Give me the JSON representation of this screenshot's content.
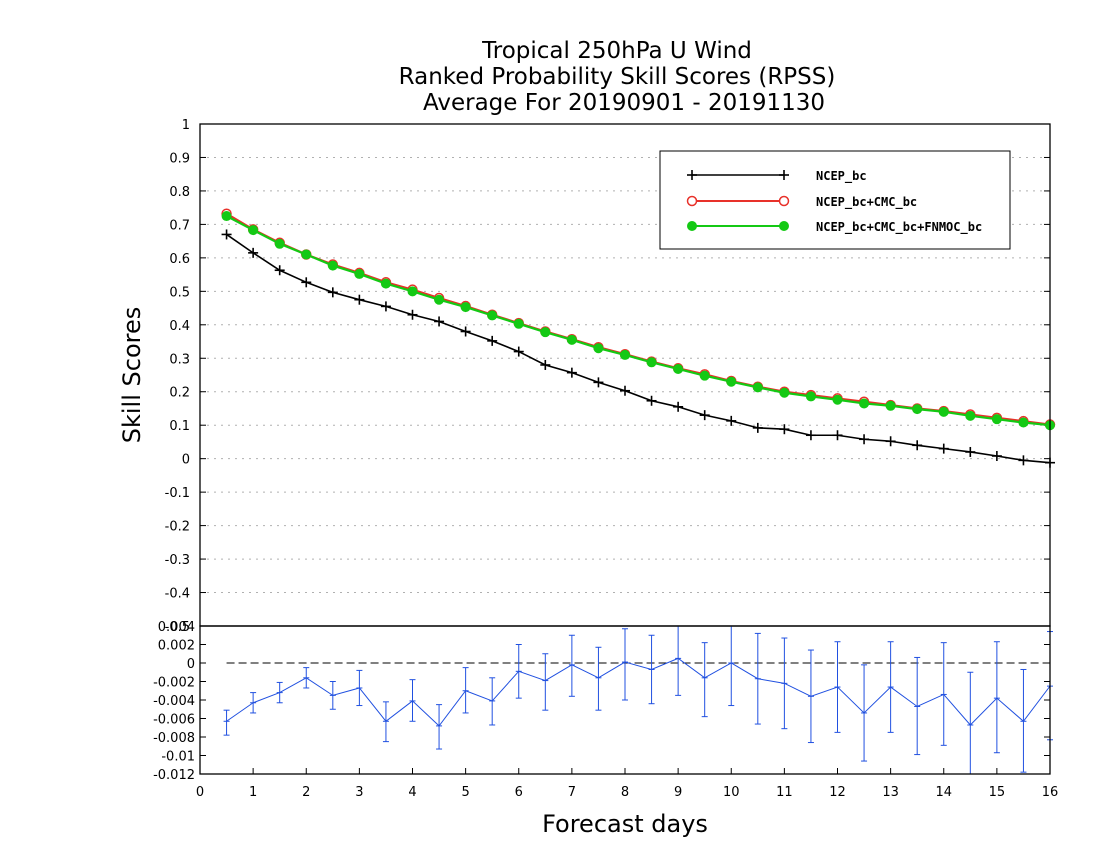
{
  "title": {
    "line1": "Tropical 250hPa U Wind",
    "line2": "Ranked Probability Skill Scores (RPSS)",
    "line3": "Average For 20190901 - 20191130"
  },
  "xlabel": "Forecast days",
  "ylabel": "Skill Scores",
  "colors": {
    "ncep": "#000000",
    "ncep_cmc": "#e8312a",
    "ncep_cmc_fnmoc": "#14c914",
    "diff": "#2050e0"
  },
  "chart_data": [
    {
      "type": "line",
      "xlim": [
        0,
        16
      ],
      "ylim": [
        -0.5,
        1
      ],
      "x_ticks": [
        "0",
        "1",
        "2",
        "3",
        "4",
        "5",
        "6",
        "7",
        "8",
        "9",
        "10",
        "11",
        "12",
        "13",
        "14",
        "15",
        "16"
      ],
      "y_ticks": [
        "1",
        "0.9",
        "0.8",
        "0.7",
        "0.6",
        "0.5",
        "0.4",
        "0.3",
        "0.2",
        "0.1",
        "0",
        "-0.1",
        "-0.2",
        "-0.3",
        "-0.4",
        "-0.5"
      ],
      "grid": true,
      "legend_position": "top-right",
      "x": [
        0.5,
        1,
        1.5,
        2,
        2.5,
        3,
        3.5,
        4,
        4.5,
        5,
        5.5,
        6,
        6.5,
        7,
        7.5,
        8,
        8.5,
        9,
        9.5,
        10,
        10.5,
        11,
        11.5,
        12,
        12.5,
        13,
        13.5,
        14,
        14.5,
        15,
        15.5,
        16
      ],
      "series": [
        {
          "name": "NCEP_bc",
          "marker": "plus",
          "values": [
            0.67,
            0.615,
            0.563,
            0.527,
            0.497,
            0.475,
            0.455,
            0.43,
            0.41,
            0.38,
            0.352,
            0.32,
            0.28,
            0.257,
            0.228,
            0.203,
            0.173,
            0.155,
            0.13,
            0.113,
            0.092,
            0.088,
            0.07,
            0.07,
            0.058,
            0.052,
            0.04,
            0.03,
            0.02,
            0.008,
            -0.005,
            -0.012
          ]
        },
        {
          "name": "NCEP_bc+CMC_bc",
          "marker": "open-circle",
          "values": [
            0.732,
            0.685,
            0.645,
            0.61,
            0.58,
            0.555,
            0.527,
            0.505,
            0.48,
            0.456,
            0.43,
            0.405,
            0.38,
            0.357,
            0.333,
            0.312,
            0.29,
            0.27,
            0.252,
            0.232,
            0.215,
            0.2,
            0.19,
            0.18,
            0.17,
            0.16,
            0.15,
            0.142,
            0.132,
            0.122,
            0.112,
            0.102
          ]
        },
        {
          "name": "NCEP_bc+CMC_bc+FNMOC_bc",
          "marker": "filled-circle",
          "values": [
            0.725,
            0.683,
            0.642,
            0.61,
            0.577,
            0.552,
            0.523,
            0.5,
            0.475,
            0.453,
            0.428,
            0.403,
            0.378,
            0.355,
            0.33,
            0.31,
            0.288,
            0.268,
            0.248,
            0.23,
            0.213,
            0.197,
            0.186,
            0.176,
            0.165,
            0.158,
            0.148,
            0.14,
            0.128,
            0.118,
            0.108,
            0.1
          ]
        }
      ]
    },
    {
      "type": "line",
      "xlim": [
        0,
        16
      ],
      "ylim": [
        -0.012,
        0.004
      ],
      "x_ticks": [
        "0",
        "1",
        "2",
        "3",
        "4",
        "5",
        "6",
        "7",
        "8",
        "9",
        "10",
        "11",
        "12",
        "13",
        "14",
        "15",
        "16"
      ],
      "y_ticks": [
        "0.004",
        "0.002",
        "0",
        "-0.002",
        "-0.004",
        "-0.006",
        "-0.008",
        "-0.01",
        "-0.012"
      ],
      "reference_line": 0,
      "error_bars": true,
      "x": [
        0.5,
        1,
        1.5,
        2,
        2.5,
        3,
        3.5,
        4,
        4.5,
        5,
        5.5,
        6,
        6.5,
        7,
        7.5,
        8,
        8.5,
        9,
        9.5,
        10,
        10.5,
        11,
        11.5,
        12,
        12.5,
        13,
        13.5,
        14,
        14.5,
        15,
        15.5,
        16
      ],
      "values": [
        -0.0063,
        -0.0043,
        -0.0032,
        -0.0016,
        -0.0035,
        -0.0027,
        -0.0063,
        -0.0041,
        -0.0068,
        -0.003,
        -0.0041,
        -0.0009,
        -0.0019,
        -0.0002,
        -0.0016,
        0.0001,
        -0.0007,
        0.0005,
        -0.0016,
        0.0,
        -0.0017,
        -0.0022,
        -0.0036,
        -0.0026,
        -0.0054,
        -0.0026,
        -0.0047,
        -0.0034,
        -0.0067,
        -0.0038,
        -0.0063,
        -0.0025
      ],
      "lower": [
        -0.0078,
        -0.0054,
        -0.0043,
        -0.0027,
        -0.005,
        -0.0046,
        -0.0085,
        -0.0063,
        -0.0093,
        -0.0054,
        -0.0067,
        -0.0038,
        -0.0051,
        -0.0036,
        -0.0051,
        -0.004,
        -0.0044,
        -0.0035,
        -0.0058,
        -0.0046,
        -0.0066,
        -0.0071,
        -0.0086,
        -0.0075,
        -0.0106,
        -0.0075,
        -0.0099,
        -0.0089,
        -0.0124,
        -0.0097,
        -0.0118,
        -0.0083
      ],
      "upper": [
        -0.0051,
        -0.0032,
        -0.0021,
        -0.0005,
        -0.002,
        -0.0008,
        -0.0042,
        -0.0018,
        -0.0045,
        -0.0005,
        -0.0016,
        0.002,
        0.001,
        0.003,
        0.0017,
        0.0037,
        0.003,
        0.0044,
        0.0022,
        0.0042,
        0.0032,
        0.0027,
        0.0014,
        0.0023,
        -0.0002,
        0.0023,
        0.0006,
        0.0022,
        -0.001,
        0.0023,
        -0.0007,
        0.0034
      ]
    }
  ]
}
